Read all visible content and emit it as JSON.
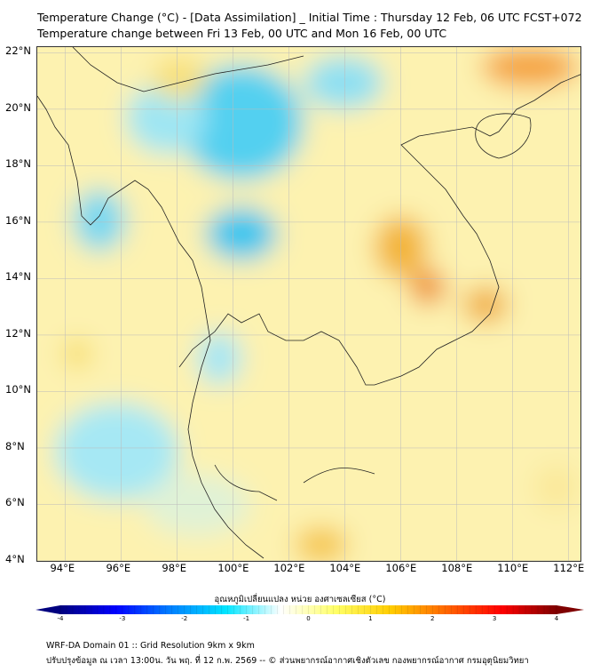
{
  "header": {
    "title": "Temperature Change (°C) - [Data Assimilation] _ Initial Time : Thursday 12 Feb, 06 UTC FCST+072",
    "subtitle": "Temperature change between Fri 13 Feb, 00 UTC and Mon 16 Feb, 00 UTC"
  },
  "map": {
    "lat_labels": [
      "22°N",
      "20°N",
      "18°N",
      "16°N",
      "14°N",
      "12°N",
      "10°N",
      "8°N",
      "6°N",
      "4°N"
    ],
    "lon_labels": [
      "94°E",
      "96°E",
      "98°E",
      "100°E",
      "102°E",
      "104°E",
      "106°E",
      "108°E",
      "110°E",
      "112°E"
    ],
    "lat_range": [
      4,
      22.2
    ],
    "lon_range": [
      93,
      112.5
    ]
  },
  "colorbar": {
    "title": "อุณหภูมิเปลี่ยนแปลง หน่วย องศาเซลเซียส (°C)",
    "ticks": [
      "-4",
      "-3",
      "-2",
      "-1",
      "0",
      "1",
      "2",
      "3",
      "4"
    ],
    "range": [
      -4,
      4
    ],
    "colors": [
      "#00007f",
      "#0000ff",
      "#0080ff",
      "#00e5ff",
      "#ffffff",
      "#ffff66",
      "#ffcc00",
      "#ff6600",
      "#ff0000",
      "#7f0000"
    ]
  },
  "footer": {
    "line1": "WRF-DA Domain 01 :: Grid Resolution 9km x 9km",
    "line2": "ปรับปรุงข้อมูล ณ เวลา 13:00น. วัน พฤ. ที่ 12 ก.พ. 2569 -- © ส่วนพยากรณ์อากาศเชิงตัวเลข กองพยากรณ์อากาศ กรมอุตุนิยมวิทยา"
  }
}
